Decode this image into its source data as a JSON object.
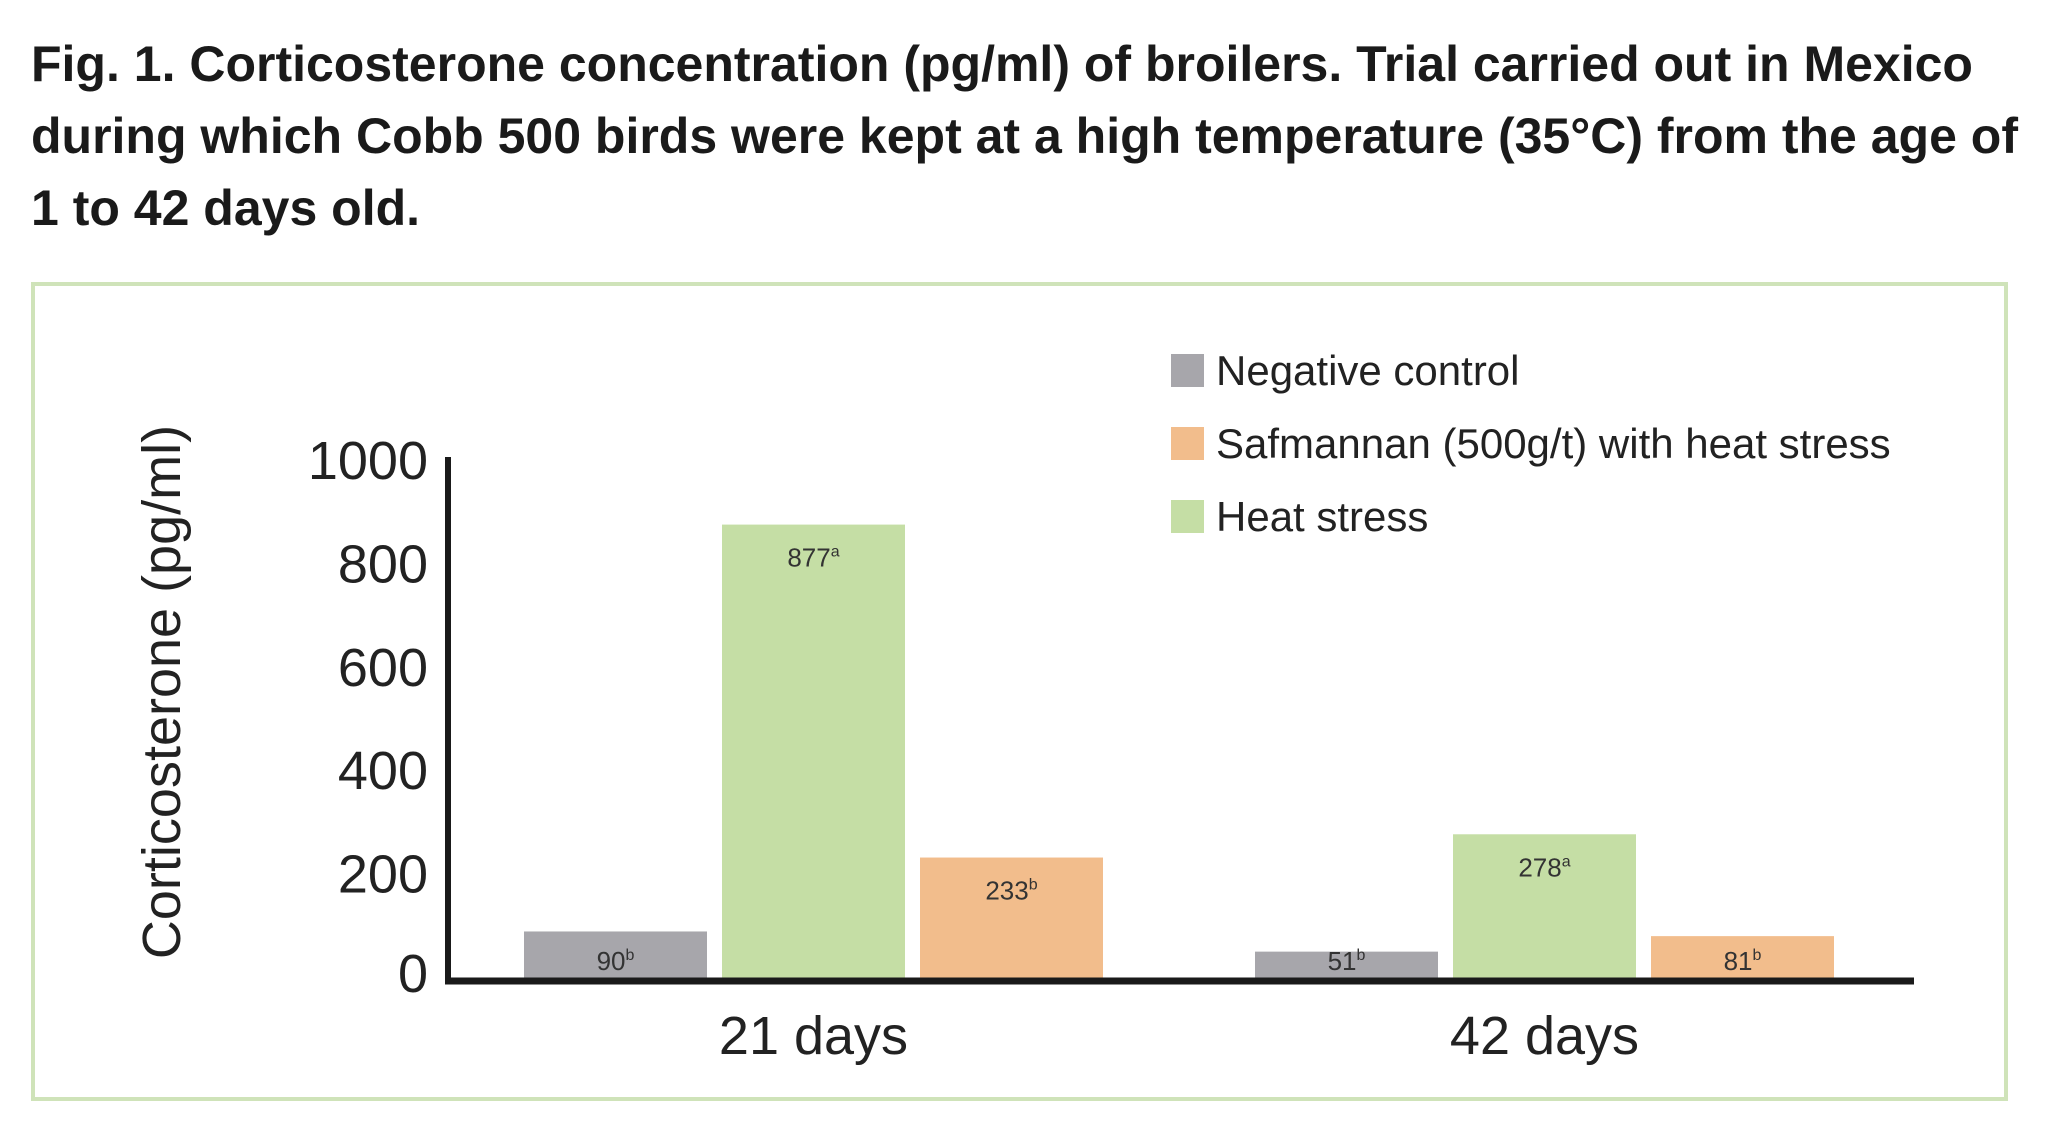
{
  "title": "Fig. 1. Corticosterone concentration (pg/ml) of broilers. Trial carried out in Mexico during which Cobb 500 birds were kept at a high temperature (35°C) from the age of 1 to 42 days old.",
  "chart_data": {
    "type": "bar",
    "title": "Fig. 1. Corticosterone concentration (pg/ml) of broilers. Trial carried out in Mexico during which Cobb 500 birds were kept at a high temperature (35°C) from the age of 1 to 42 days old.",
    "xlabel": "",
    "ylabel": "Corticosterone (pg/ml)",
    "ylim": [
      0,
      1000
    ],
    "yticks": [
      "0",
      "200",
      "400",
      "600",
      "800",
      "1000"
    ],
    "categories": [
      "21 days",
      "42 days"
    ],
    "grid": false,
    "legend_position": "top-right",
    "series": [
      {
        "name": "Negative control",
        "color": "#a7a6ab",
        "values": [
          90,
          51
        ],
        "labels": [
          "90",
          "51"
        ],
        "superscripts": [
          "b",
          "b"
        ]
      },
      {
        "name": "Heat stress",
        "color": "#c5dea5",
        "values": [
          877,
          278
        ],
        "labels": [
          "877",
          "278"
        ],
        "superscripts": [
          "a",
          "a"
        ]
      },
      {
        "name": "Safmannan (500g/t) with heat stress",
        "color": "#f2bd8c",
        "values": [
          233,
          81
        ],
        "labels": [
          "233",
          "81"
        ],
        "superscripts": [
          "b",
          "b"
        ]
      }
    ],
    "legend_order": [
      "Negative control",
      "Safmannan (500g/t) with heat stress",
      "Heat stress"
    ]
  }
}
